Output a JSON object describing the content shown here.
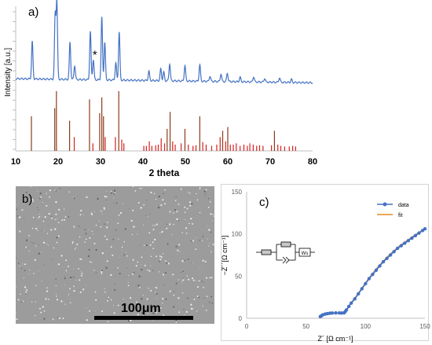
{
  "chart_data": [
    {
      "panel": "a)",
      "type": "line",
      "ylabel": "Intensity [a.u.]",
      "xlabel": "2 theta",
      "xlim": [
        10,
        80
      ],
      "xticks": [
        "10",
        "20",
        "30",
        "40",
        "50",
        "60",
        "70",
        "80"
      ],
      "annotation": "*",
      "annotation_x": 28.3,
      "colors": {
        "pattern": "#4472c4",
        "reference": "#d62020",
        "reference_dark": "#8b3a1a"
      },
      "pattern_baseline": 0.13,
      "pattern_peaks": [
        [
          13.9,
          0.48
        ],
        [
          19.3,
          0.82
        ],
        [
          19.7,
          1.0
        ],
        [
          22.8,
          0.48
        ],
        [
          23.9,
          0.18
        ],
        [
          27.6,
          0.62
        ],
        [
          28.3,
          0.26
        ],
        [
          30.3,
          0.8
        ],
        [
          31.0,
          0.48
        ],
        [
          33.6,
          0.22
        ],
        [
          34.4,
          0.62
        ],
        [
          41.4,
          0.12
        ],
        [
          44.2,
          0.15
        ],
        [
          44.9,
          0.11
        ],
        [
          46.3,
          0.22
        ],
        [
          49.9,
          0.2
        ],
        [
          53.4,
          0.21
        ],
        [
          55.8,
          0.07
        ],
        [
          58.4,
          0.1
        ],
        [
          59.9,
          0.11
        ],
        [
          62.9,
          0.06
        ],
        [
          66.1,
          0.07
        ],
        [
          68.7,
          0.05
        ],
        [
          72.2,
          0.06
        ],
        [
          75.0,
          0.04
        ]
      ],
      "reference_lines": [
        [
          13.7,
          0.55
        ],
        [
          19.2,
          0.68
        ],
        [
          19.6,
          0.95
        ],
        [
          22.7,
          0.48
        ],
        [
          23.8,
          0.22
        ],
        [
          27.4,
          0.82
        ],
        [
          28.2,
          0.12
        ],
        [
          29.8,
          0.6
        ],
        [
          30.3,
          0.85
        ],
        [
          30.7,
          0.55
        ],
        [
          31.1,
          0.22
        ],
        [
          33.5,
          0.22
        ],
        [
          34.3,
          0.95
        ],
        [
          35.0,
          0.18
        ],
        [
          35.5,
          0.12
        ],
        [
          40.2,
          0.08
        ],
        [
          40.8,
          0.08
        ],
        [
          41.5,
          0.15
        ],
        [
          42.1,
          0.08
        ],
        [
          43.0,
          0.09
        ],
        [
          43.6,
          0.1
        ],
        [
          44.3,
          0.2
        ],
        [
          45.1,
          0.12
        ],
        [
          45.7,
          0.35
        ],
        [
          46.4,
          0.62
        ],
        [
          47.0,
          0.15
        ],
        [
          47.6,
          0.1
        ],
        [
          49.0,
          0.12
        ],
        [
          49.9,
          0.35
        ],
        [
          50.7,
          0.1
        ],
        [
          51.8,
          0.08
        ],
        [
          52.5,
          0.09
        ],
        [
          53.4,
          0.55
        ],
        [
          54.1,
          0.14
        ],
        [
          54.9,
          0.1
        ],
        [
          56.2,
          0.08
        ],
        [
          57.4,
          0.1
        ],
        [
          58.2,
          0.22
        ],
        [
          58.8,
          0.32
        ],
        [
          59.5,
          0.15
        ],
        [
          60.0,
          0.38
        ],
        [
          60.6,
          0.1
        ],
        [
          61.3,
          0.1
        ],
        [
          62.0,
          0.12
        ],
        [
          62.9,
          0.08
        ],
        [
          63.8,
          0.1
        ],
        [
          64.6,
          0.08
        ],
        [
          65.2,
          0.12
        ],
        [
          66.0,
          0.1
        ],
        [
          66.8,
          0.08
        ],
        [
          67.5,
          0.09
        ],
        [
          68.3,
          0.08
        ],
        [
          70.3,
          0.09
        ],
        [
          71.0,
          0.32
        ],
        [
          71.8,
          0.1
        ],
        [
          72.5,
          0.08
        ],
        [
          73.4,
          0.07
        ],
        [
          74.5,
          0.07
        ],
        [
          75.3,
          0.08
        ],
        [
          76.0,
          0.07
        ]
      ]
    },
    {
      "panel": "b)",
      "type": "image",
      "scale_bar": "100μm"
    },
    {
      "panel": "c)",
      "type": "scatter",
      "xlabel": "Z´ [Ω cm⁻¹]",
      "ylabel": "−Z´´[Ω cm⁻¹]",
      "xlim": [
        0,
        150
      ],
      "ylim": [
        0,
        150
      ],
      "xticks": [
        0,
        50,
        100,
        150
      ],
      "yticks": [
        0,
        50,
        100,
        150
      ],
      "grid": false,
      "legend_position": "top-right",
      "circuit_label": "Ws",
      "series": [
        {
          "name": "data",
          "color": "#4472c4",
          "x": [
            62,
            63,
            64,
            66,
            68,
            70,
            72,
            75,
            78,
            80,
            82,
            83,
            84,
            86,
            88,
            91,
            94,
            97,
            100,
            103,
            106,
            109,
            112,
            115,
            118,
            121,
            124,
            127,
            130,
            133,
            136,
            139,
            142,
            145,
            148,
            150
          ],
          "y": [
            2,
            3,
            4,
            5,
            5.5,
            6,
            6.2,
            6.3,
            6.3,
            6.2,
            6.5,
            8,
            10,
            14,
            18,
            23,
            29,
            35,
            41,
            47,
            52,
            57,
            62,
            67,
            71,
            75,
            79,
            83,
            86,
            89,
            92,
            95,
            98,
            101,
            104,
            106
          ]
        },
        {
          "name": "fit",
          "color": "#e08a2c",
          "x": [
            62,
            64,
            66,
            68,
            70,
            72,
            75,
            78,
            80,
            82,
            84,
            86,
            88,
            91,
            94,
            97,
            100,
            103,
            106,
            109,
            112,
            115,
            118,
            121,
            124,
            127,
            130,
            133,
            136,
            139,
            142,
            145,
            148,
            150
          ],
          "y": [
            2,
            4,
            5,
            5.5,
            5.9,
            6.1,
            6.2,
            6.2,
            6.1,
            6.6,
            10.2,
            14.2,
            18.5,
            23.5,
            29.5,
            35.5,
            41.5,
            47.5,
            53,
            58,
            63,
            67.5,
            72,
            76,
            80,
            83.5,
            87,
            90,
            93,
            96,
            99,
            101.5,
            104.5,
            106.5
          ]
        }
      ]
    }
  ]
}
